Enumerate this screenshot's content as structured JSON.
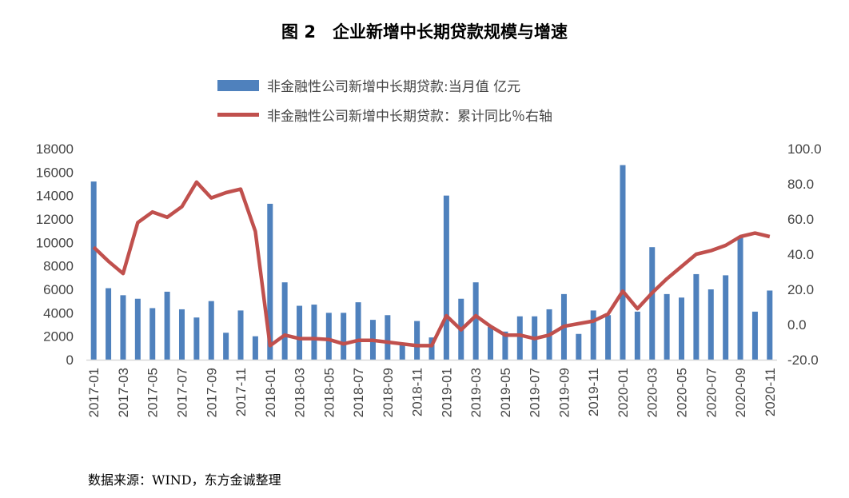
{
  "chart_data": {
    "type": "bar+line",
    "title": "图 2　企业新增中长期贷款规模与增速",
    "categories": [
      "2017-01",
      "2017-02",
      "2017-03",
      "2017-04",
      "2017-05",
      "2017-06",
      "2017-07",
      "2017-08",
      "2017-09",
      "2017-10",
      "2017-11",
      "2017-12",
      "2018-01",
      "2018-02",
      "2018-03",
      "2018-04",
      "2018-05",
      "2018-06",
      "2018-07",
      "2018-08",
      "2018-09",
      "2018-10",
      "2018-11",
      "2018-12",
      "2019-01",
      "2019-02",
      "2019-03",
      "2019-04",
      "2019-05",
      "2019-06",
      "2019-07",
      "2019-08",
      "2019-09",
      "2019-10",
      "2019-11",
      "2019-12",
      "2020-01",
      "2020-02",
      "2020-03",
      "2020-04",
      "2020-05",
      "2020-06",
      "2020-07",
      "2020-08",
      "2020-09",
      "2020-10",
      "2020-11"
    ],
    "x_tick_labels": [
      "2017-01",
      "2017-03",
      "2017-05",
      "2017-07",
      "2017-09",
      "2017-11",
      "2018-01",
      "2018-03",
      "2018-05",
      "2018-07",
      "2018-09",
      "2018-11",
      "2019-01",
      "2019-03",
      "2019-05",
      "2019-07",
      "2019-09",
      "2019-11",
      "2020-01",
      "2020-03",
      "2020-05",
      "2020-07",
      "2020-09",
      "2020-11"
    ],
    "series": [
      {
        "name": "非金融性公司新增中长期贷款:当月值 亿元",
        "type": "bar",
        "axis": "left",
        "color": "#4f81bd",
        "values": [
          15200,
          6100,
          5500,
          5200,
          4400,
          5800,
          4300,
          3600,
          5000,
          2300,
          4200,
          2000,
          13300,
          6600,
          4600,
          4700,
          4000,
          4000,
          4900,
          3400,
          3800,
          1400,
          3300,
          1900,
          14000,
          5200,
          6600,
          2800,
          2400,
          3700,
          3700,
          4300,
          5600,
          2200,
          4200,
          3800,
          16600,
          4100,
          9600,
          5600,
          5300,
          7300,
          6000,
          7200,
          10500,
          4100,
          5900
        ]
      },
      {
        "name": "非金融性公司新增中长期贷款：累计同比％右轴",
        "type": "line",
        "axis": "right",
        "color": "#c0504d",
        "values": [
          44,
          36,
          29,
          58,
          64,
          61,
          67,
          81,
          72,
          75,
          77,
          53,
          -12,
          -6,
          -8,
          -8,
          -8.5,
          -11,
          -9,
          -9,
          -10,
          -11,
          -12,
          -12,
          5,
          -3,
          5,
          -1,
          -6,
          -6,
          -8,
          -6,
          -1,
          0.5,
          2,
          6,
          19,
          9,
          18,
          26,
          33,
          40,
          42,
          45,
          50,
          52,
          50
        ]
      }
    ],
    "y_left": {
      "range": [
        0,
        18000
      ],
      "ticks": [
        "0",
        "2000",
        "4000",
        "6000",
        "8000",
        "10000",
        "12000",
        "14000",
        "16000",
        "18000"
      ]
    },
    "y_right": {
      "range": [
        -20,
        100
      ],
      "ticks": [
        "-20.0",
        "0.0",
        "20.0",
        "40.0",
        "60.0",
        "80.0",
        "100.0"
      ]
    },
    "legend_position": "top",
    "grid": false
  },
  "source": "数据来源：WIND，东方金诚整理"
}
